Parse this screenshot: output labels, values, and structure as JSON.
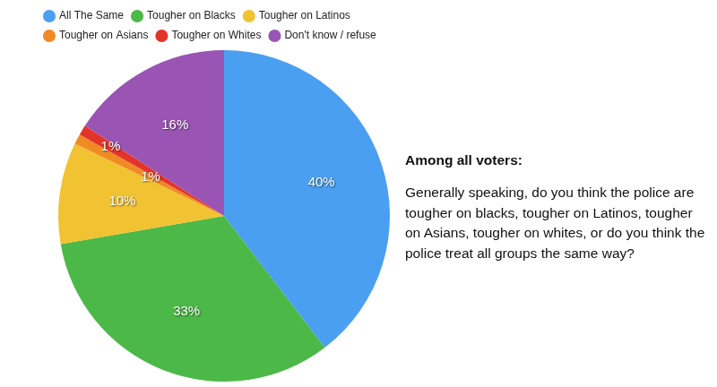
{
  "chart_data": {
    "type": "pie",
    "title": "Among all voters:",
    "subtitle": "Generally speaking, do you think the police are tougher on blacks, tougher on Latinos, tougher on Asians, tougher on whites, or do you think the police treat all groups the same way?",
    "categories": [
      "All The Same",
      "Tougher on Blacks",
      "Tougher on Latinos",
      "Tougher on Asians",
      "Tougher on Whites",
      "Don't know / refuse"
    ],
    "values": [
      40,
      33,
      10,
      1,
      1,
      16
    ],
    "value_labels": [
      "40%",
      "33%",
      "10%",
      "1%",
      "1%",
      "16%"
    ],
    "colors": [
      "#4a9ff0",
      "#4cb848",
      "#f1c232",
      "#f08a24",
      "#e3342a",
      "#9a55b4"
    ],
    "legend": "top",
    "data_labels": true
  }
}
